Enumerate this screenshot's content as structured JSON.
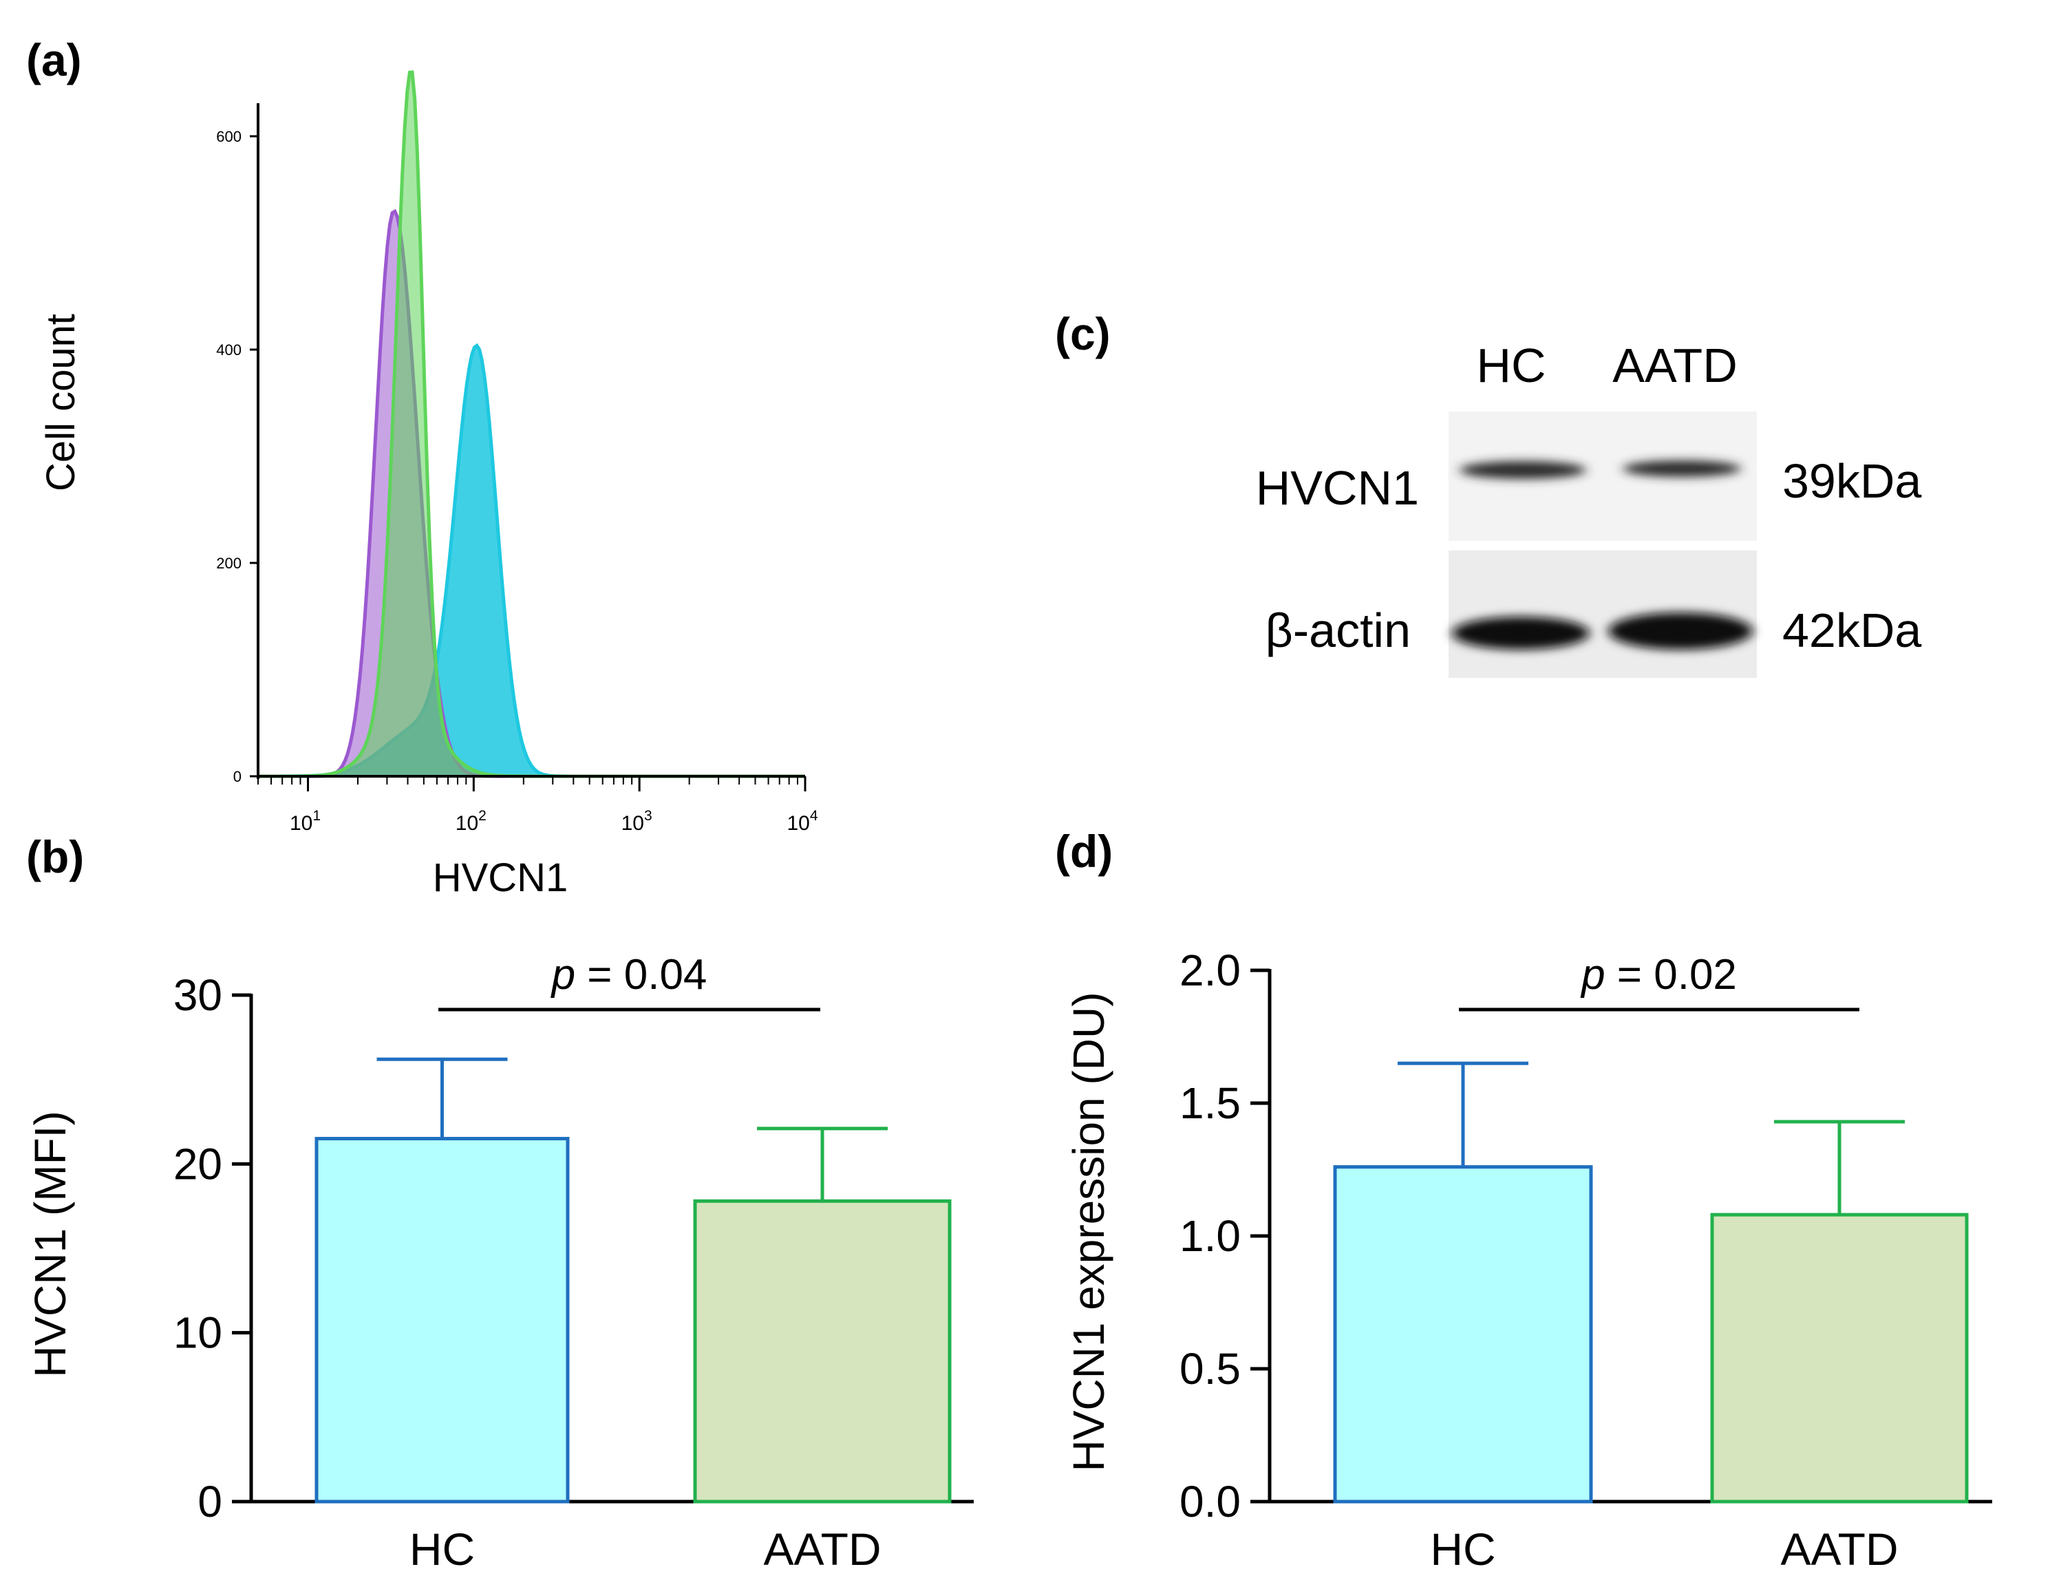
{
  "panels": {
    "a": {
      "label": "(a)"
    },
    "b": {
      "label": "(b)"
    },
    "c": {
      "label": "(c)"
    },
    "d": {
      "label": "(d)"
    }
  },
  "western_blot": {
    "lanes": [
      "HC",
      "AATD"
    ],
    "rows": [
      {
        "protein": "HVCN1",
        "size": "39kDa",
        "band_intensity": [
          0.55,
          0.42
        ]
      },
      {
        "protein": "β-actin",
        "size": "42kDa",
        "band_intensity": [
          0.95,
          1.0
        ]
      }
    ]
  },
  "colors": {
    "purple": "#9b59d0",
    "green": "#5fd45a",
    "cyan": "#1ec8e0",
    "hc_fill": "#b3ffff",
    "hc_stroke": "#1f6fbf",
    "aatd_fill": "#d6e5bd",
    "aatd_stroke": "#22b14c"
  },
  "chart_data": [
    {
      "type": "area",
      "panel": "a",
      "xlabel": "HVCN1",
      "ylabel": "Cell count",
      "x_scale": "log",
      "xlim": [
        5,
        10000
      ],
      "ylim": [
        0,
        600
      ],
      "x_ticks": [
        {
          "v": 10,
          "base": "10",
          "exp": "1"
        },
        {
          "v": 100,
          "base": "10",
          "exp": "2"
        },
        {
          "v": 1000,
          "base": "10",
          "exp": "3"
        },
        {
          "v": 10000,
          "base": "10",
          "exp": "4"
        }
      ],
      "y_ticks": [
        "0",
        "200",
        "400",
        "600"
      ],
      "series": [
        {
          "color": "purple",
          "peak_x": 33,
          "peak_y": 530,
          "left_sigma": 0.11,
          "right_sigma": 0.14
        },
        {
          "color": "green",
          "peak_x": 42,
          "peak_y": 598,
          "left_sigma": 0.09,
          "right_sigma": 0.07,
          "shoulder": {
            "x": 40,
            "y": 65,
            "sigma": 0.18
          }
        },
        {
          "color": "cyan",
          "peak_x": 105,
          "peak_y": 390,
          "left_sigma": 0.13,
          "right_sigma": 0.12,
          "shoulder": {
            "x": 48,
            "y": 45,
            "sigma": 0.22
          }
        }
      ]
    },
    {
      "type": "bar",
      "panel": "b",
      "categories": [
        "HC",
        "AATD"
      ],
      "values": [
        21.5,
        17.8
      ],
      "errors": [
        4.7,
        4.3
      ],
      "ylabel": "HVCN1 (MFI)",
      "xlabel": "",
      "ylim": [
        0,
        30
      ],
      "y_ticks": [
        0,
        10,
        20,
        30
      ],
      "significance": {
        "p_symbol": "p",
        "text": " = 0.04"
      }
    },
    {
      "type": "bar",
      "panel": "d",
      "categories": [
        "HC",
        "AATD"
      ],
      "values": [
        1.26,
        1.08
      ],
      "errors": [
        0.39,
        0.35
      ],
      "ylabel": "HVCN1 expression (DU)",
      "xlabel": "",
      "ylim": [
        0,
        2.0
      ],
      "y_ticks": [
        "0.0",
        "0.5",
        "1.0",
        "1.5",
        "2.0"
      ],
      "significance": {
        "p_symbol": "p",
        "text": " = 0.02"
      }
    }
  ]
}
